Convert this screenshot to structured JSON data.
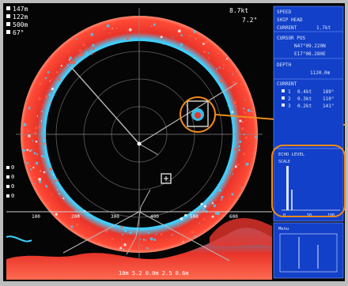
{
  "top_left_readout": [
    "147m",
    "122m",
    "500m",
    "67°"
  ],
  "top_center_readout": [
    "8.7kt",
    "7.2°"
  ],
  "side_panel": {
    "lines": [
      {
        "label": "SPEED",
        "value": ""
      },
      {
        "label": "SHIP HEAD",
        "value": ""
      },
      {
        "label": "CURRENT",
        "value": "1.7kt"
      },
      {
        "label": "CURSOR POS",
        "value": ""
      },
      {
        "label": "",
        "value": "N47°09.220N"
      },
      {
        "label": "",
        "value": "E17°08.280E"
      },
      {
        "label": "DEPTH",
        "value": "1120.0m"
      },
      {
        "label": "CURRENT",
        "value": ""
      }
    ],
    "current_table": [
      {
        "depth": "1",
        "speed": "0.4kt",
        "dir": "189°"
      },
      {
        "depth": "2",
        "speed": "0.3kt",
        "dir": "110°"
      },
      {
        "depth": "3",
        "speed": "0.2kt",
        "dir": "141°"
      }
    ],
    "histogram_label": "ECHO LEVEL",
    "histogram_sub": "SCALE",
    "histogram_axis": [
      "0",
      "50",
      "100"
    ],
    "bottom_box_label": "Menu"
  },
  "left_markers": [
    "0",
    "0",
    "0",
    "0"
  ],
  "depth_ruler_labels": [
    "100",
    "200",
    "300",
    "400",
    "500",
    "600"
  ],
  "bottom_readout": "10m  5.2  0.0m  2.5  0.6m",
  "colors": {
    "sea_background": "#050505",
    "echo_red": "#e8342a",
    "echo_cyan": "#3fd0ff",
    "panel_blue": "#1240c8",
    "callout_orange": "#f08a1c",
    "frame": "#c0c0c0"
  }
}
